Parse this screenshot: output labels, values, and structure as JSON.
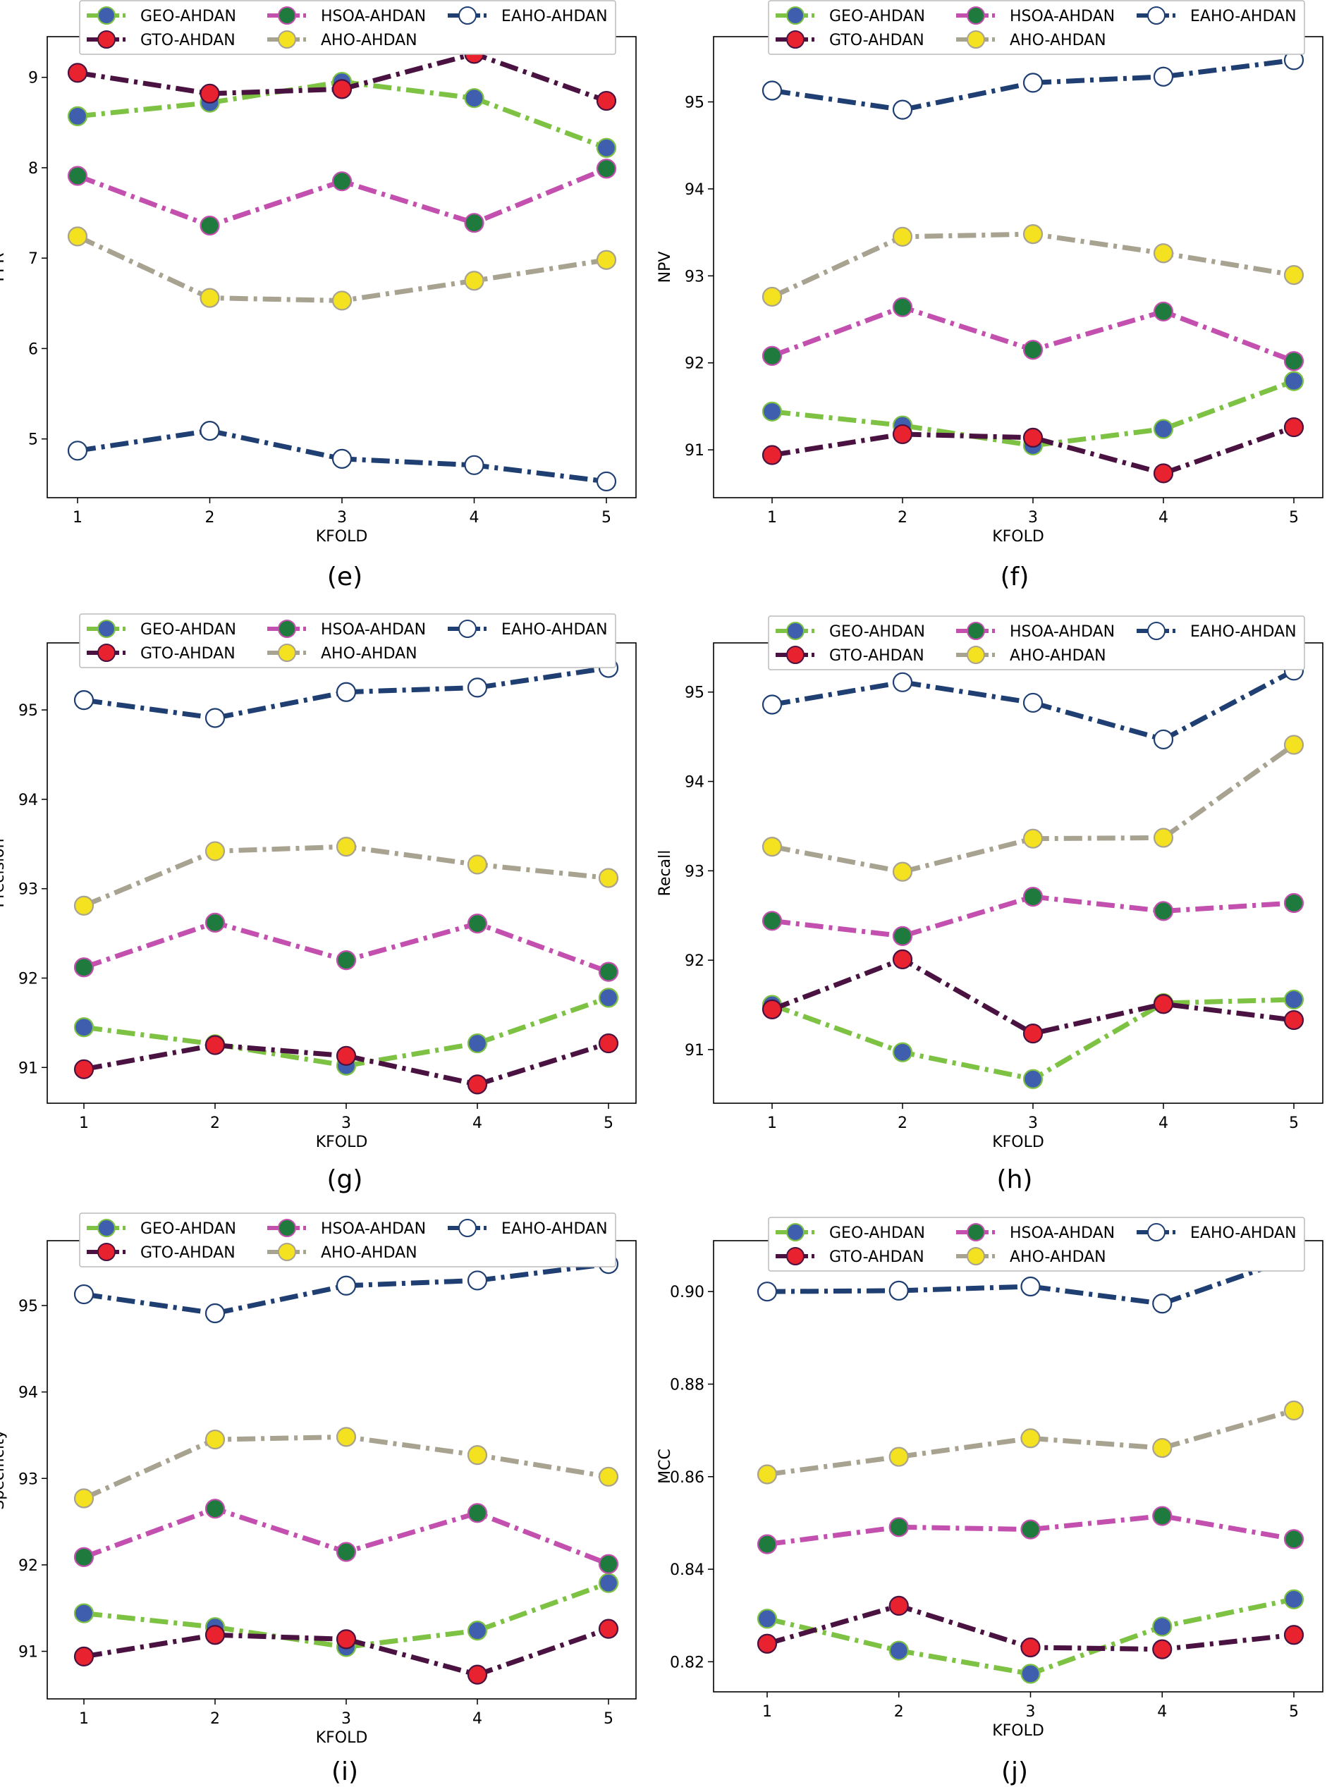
{
  "series_styles": [
    {
      "name": "GEO-AHDAN",
      "line": "#7dc242",
      "fill": "#3f5fae",
      "edge": "#7dc242"
    },
    {
      "name": "GTO-AHDAN",
      "line": "#4a1240",
      "fill": "#e8222e",
      "edge": "#4a1240"
    },
    {
      "name": "HSOA-AHDAN",
      "line": "#c34fae",
      "fill": "#1f7a3e",
      "edge": "#c34fae"
    },
    {
      "name": "AHO-AHDAN",
      "line": "#a8a290",
      "fill": "#f4e11f",
      "edge": "#a8a290"
    },
    {
      "name": "EAHO-AHDAN",
      "line": "#1f3f73",
      "fill": "#ffffff",
      "edge": "#1f3f73"
    }
  ],
  "chart_data": [
    {
      "panel": "(e)",
      "type": "line",
      "xlabel": "KFOLD",
      "ylabel": "FPR",
      "x": [
        1,
        2,
        3,
        4,
        5
      ],
      "ylim": [
        4.35,
        9.45
      ],
      "yticks": [
        5,
        6,
        7,
        8,
        9
      ],
      "ytick_labels": [
        "5",
        "6",
        "7",
        "8",
        "9"
      ],
      "series": [
        {
          "name": "GEO-AHDAN",
          "values": [
            8.57,
            8.72,
            8.95,
            8.77,
            8.22
          ]
        },
        {
          "name": "GTO-AHDAN",
          "values": [
            9.05,
            8.82,
            8.87,
            9.26,
            8.74
          ]
        },
        {
          "name": "HSOA-AHDAN",
          "values": [
            7.91,
            7.36,
            7.85,
            7.39,
            7.99
          ]
        },
        {
          "name": "AHO-AHDAN",
          "values": [
            7.24,
            6.56,
            6.53,
            6.75,
            6.98
          ]
        },
        {
          "name": "EAHO-AHDAN",
          "values": [
            4.87,
            5.09,
            4.78,
            4.71,
            4.53
          ]
        }
      ]
    },
    {
      "panel": "(f)",
      "type": "line",
      "xlabel": "KFOLD",
      "ylabel": "NPV",
      "x": [
        1,
        2,
        3,
        4,
        5
      ],
      "ylim": [
        90.45,
        95.75
      ],
      "yticks": [
        91,
        92,
        93,
        94,
        95
      ],
      "ytick_labels": [
        "91",
        "92",
        "93",
        "94",
        "95"
      ],
      "series": [
        {
          "name": "GEO-AHDAN",
          "values": [
            91.44,
            91.28,
            91.05,
            91.24,
            91.79
          ]
        },
        {
          "name": "GTO-AHDAN",
          "values": [
            90.94,
            91.18,
            91.14,
            90.73,
            91.26
          ]
        },
        {
          "name": "HSOA-AHDAN",
          "values": [
            92.08,
            92.64,
            92.15,
            92.59,
            92.02
          ]
        },
        {
          "name": "AHO-AHDAN",
          "values": [
            92.76,
            93.45,
            93.48,
            93.26,
            93.01
          ]
        },
        {
          "name": "EAHO-AHDAN",
          "values": [
            95.13,
            94.91,
            95.22,
            95.29,
            95.48
          ]
        }
      ]
    },
    {
      "panel": "(g)",
      "type": "line",
      "xlabel": "KFOLD",
      "ylabel": "Precision",
      "x": [
        1,
        2,
        3,
        4,
        5
      ],
      "ylim": [
        90.6,
        95.75
      ],
      "yticks": [
        91,
        92,
        93,
        94,
        95
      ],
      "ytick_labels": [
        "91",
        "92",
        "93",
        "94",
        "95"
      ],
      "series": [
        {
          "name": "GEO-AHDAN",
          "values": [
            91.45,
            91.26,
            91.02,
            91.27,
            91.78
          ]
        },
        {
          "name": "GTO-AHDAN",
          "values": [
            90.98,
            91.25,
            91.13,
            90.81,
            91.27
          ]
        },
        {
          "name": "HSOA-AHDAN",
          "values": [
            92.12,
            92.62,
            92.2,
            92.61,
            92.07
          ]
        },
        {
          "name": "AHO-AHDAN",
          "values": [
            92.81,
            93.42,
            93.47,
            93.27,
            93.12
          ]
        },
        {
          "name": "EAHO-AHDAN",
          "values": [
            95.11,
            94.91,
            95.2,
            95.25,
            95.47
          ]
        }
      ]
    },
    {
      "panel": "(h)",
      "type": "line",
      "xlabel": "KFOLD",
      "ylabel": "Recall",
      "x": [
        1,
        2,
        3,
        4,
        5
      ],
      "ylim": [
        90.4,
        95.55
      ],
      "yticks": [
        91,
        92,
        93,
        94,
        95
      ],
      "ytick_labels": [
        "91",
        "92",
        "93",
        "94",
        "95"
      ],
      "series": [
        {
          "name": "GEO-AHDAN",
          "values": [
            91.5,
            90.97,
            90.67,
            91.52,
            91.56
          ]
        },
        {
          "name": "GTO-AHDAN",
          "values": [
            91.45,
            92.01,
            91.18,
            91.51,
            91.33
          ]
        },
        {
          "name": "HSOA-AHDAN",
          "values": [
            92.44,
            92.27,
            92.71,
            92.55,
            92.64
          ]
        },
        {
          "name": "AHO-AHDAN",
          "values": [
            93.27,
            92.99,
            93.36,
            93.37,
            94.41
          ]
        },
        {
          "name": "EAHO-AHDAN",
          "values": [
            94.86,
            95.11,
            94.88,
            94.47,
            95.24
          ]
        }
      ]
    },
    {
      "panel": "(i)",
      "type": "line",
      "xlabel": "KFOLD",
      "ylabel": "Specificity",
      "x": [
        1,
        2,
        3,
        4,
        5
      ],
      "ylim": [
        90.45,
        95.75
      ],
      "yticks": [
        91,
        92,
        93,
        94,
        95
      ],
      "ytick_labels": [
        "91",
        "92",
        "93",
        "94",
        "95"
      ],
      "series": [
        {
          "name": "GEO-AHDAN",
          "values": [
            91.44,
            91.28,
            91.05,
            91.24,
            91.79
          ]
        },
        {
          "name": "GTO-AHDAN",
          "values": [
            90.94,
            91.19,
            91.14,
            90.73,
            91.26
          ]
        },
        {
          "name": "HSOA-AHDAN",
          "values": [
            92.09,
            92.65,
            92.15,
            92.6,
            92.01
          ]
        },
        {
          "name": "AHO-AHDAN",
          "values": [
            92.77,
            93.45,
            93.48,
            93.27,
            93.02
          ]
        },
        {
          "name": "EAHO-AHDAN",
          "values": [
            95.13,
            94.91,
            95.23,
            95.29,
            95.48
          ]
        }
      ]
    },
    {
      "panel": "(j)",
      "type": "line",
      "xlabel": "KFOLD",
      "ylabel": "MCC",
      "x": [
        1,
        2,
        3,
        4,
        5
      ],
      "ylim": [
        0.8135,
        0.911
      ],
      "yticks": [
        0.82,
        0.84,
        0.86,
        0.88,
        0.9
      ],
      "ytick_labels": [
        "0.82",
        "0.84",
        "0.86",
        "0.88",
        "0.90"
      ],
      "series": [
        {
          "name": "GEO-AHDAN",
          "values": [
            0.8293,
            0.8224,
            0.8174,
            0.8276,
            0.8335
          ]
        },
        {
          "name": "GTO-AHDAN",
          "values": [
            0.8239,
            0.8321,
            0.8231,
            0.8227,
            0.8258
          ]
        },
        {
          "name": "HSOA-AHDAN",
          "values": [
            0.8454,
            0.8491,
            0.8486,
            0.8515,
            0.8465
          ]
        },
        {
          "name": "AHO-AHDAN",
          "values": [
            0.8605,
            0.8643,
            0.8683,
            0.8662,
            0.8743
          ]
        },
        {
          "name": "EAHO-AHDAN",
          "values": [
            0.9,
            0.9002,
            0.9011,
            0.8974,
            0.9073
          ]
        }
      ]
    }
  ]
}
